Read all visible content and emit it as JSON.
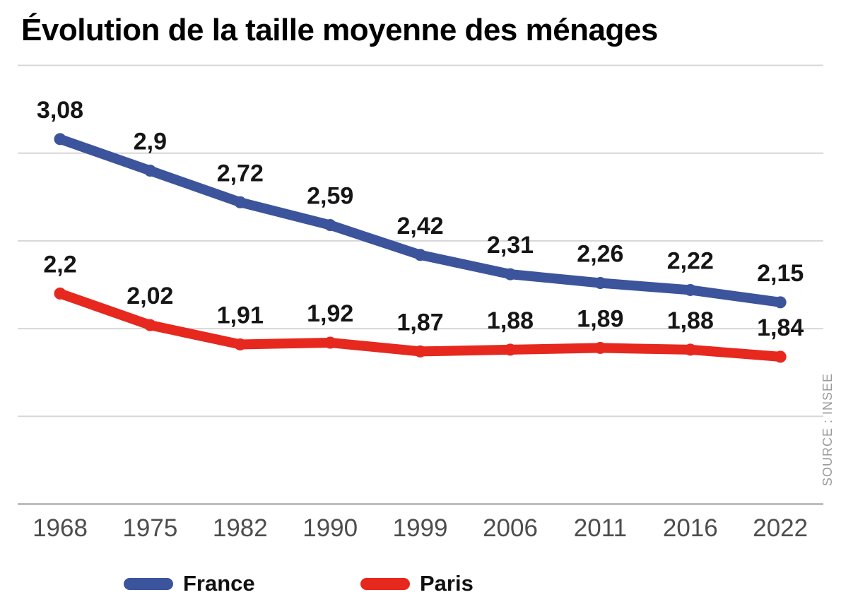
{
  "page": {
    "title": "Évolution de la taille moyenne des ménages"
  },
  "source_label": "SOURCE : INSEE",
  "colors": {
    "france_blue": "#3B549B",
    "paris_red": "#E6281E",
    "gridline": "#D7D7D7",
    "axis_line": "#BDBDBD",
    "value_label_text": "#161616",
    "tick_text": "#4D4D4D",
    "source_text": "#9A9A9A",
    "background": "#FFFFFF"
  },
  "chart_data": {
    "type": "line",
    "title": "Évolution de la taille moyenne des ménages",
    "categories": [
      "1968",
      "1975",
      "1982",
      "1990",
      "1999",
      "2006",
      "2011",
      "2016",
      "2022"
    ],
    "series": [
      {
        "name": "France",
        "color": "#3B549B",
        "values": [
          3.08,
          2.9,
          2.72,
          2.59,
          2.42,
          2.31,
          2.26,
          2.22,
          2.15
        ],
        "labels": [
          "3,08",
          "2,9",
          "2,72",
          "2,59",
          "2,42",
          "2,31",
          "2,26",
          "2,22",
          "2,15"
        ]
      },
      {
        "name": "Paris",
        "color": "#E6281E",
        "values": [
          2.2,
          2.02,
          1.91,
          1.92,
          1.87,
          1.88,
          1.89,
          1.88,
          1.84
        ],
        "labels": [
          "2,2",
          "2,02",
          "1,91",
          "1,92",
          "1,87",
          "1,88",
          "1,89",
          "1,88",
          "1,84"
        ]
      }
    ],
    "xlabel": "",
    "ylabel": "",
    "ylim": [
      1.0,
      3.5
    ],
    "grid_step": 0.5,
    "grid_on": true,
    "y_tick_labels_shown": false,
    "legend_position": "bottom",
    "value_labels_shown": true,
    "value_format": "french-decimal-comma",
    "source": "SOURCE : INSEE"
  }
}
